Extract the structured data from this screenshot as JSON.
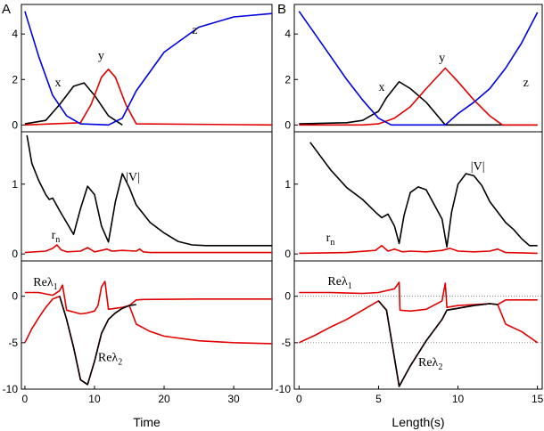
{
  "panels": {
    "A": "A",
    "B": "B"
  },
  "chart_data": [
    {
      "id": "A-top",
      "type": "line",
      "xlim": [
        -0.5,
        35.5
      ],
      "ylim": [
        -0.3,
        5.3
      ],
      "yticks": [
        0,
        2,
        4
      ],
      "xticks": [],
      "series": [
        {
          "name": "x",
          "color": "#000000",
          "x": [
            0,
            3,
            5,
            7,
            8.5,
            10,
            12,
            14
          ],
          "y": [
            0.05,
            0.2,
            0.9,
            1.7,
            1.85,
            1.3,
            0.4,
            0.0
          ]
        },
        {
          "name": "y",
          "color": "#e00000",
          "x": [
            0,
            8,
            9.5,
            11,
            12,
            13,
            14.5,
            16,
            36
          ],
          "y": [
            0,
            0.1,
            0.9,
            2.1,
            2.45,
            2.1,
            0.9,
            0.05,
            0
          ]
        },
        {
          "name": "z",
          "color": "#0000e0",
          "x": [
            0,
            2,
            4,
            6,
            8,
            12,
            14,
            16,
            20,
            25,
            30,
            35.5
          ],
          "y": [
            5.0,
            3.0,
            1.3,
            0.4,
            0.05,
            0,
            0.3,
            1.5,
            3.2,
            4.3,
            4.75,
            4.9
          ]
        }
      ],
      "labels": [
        {
          "text": "x",
          "x": 4.3,
          "y": 1.7
        },
        {
          "text": "y",
          "x": 10.5,
          "y": 2.9
        },
        {
          "text": "z",
          "x": 24,
          "y": 4.0
        }
      ]
    },
    {
      "id": "A-mid",
      "type": "line",
      "xlim": [
        -0.5,
        35.5
      ],
      "ylim": [
        -0.1,
        1.75
      ],
      "yticks": [
        0,
        1
      ],
      "xticks": [],
      "series": [
        {
          "name": "|V|",
          "color": "#000000",
          "x": [
            0.3,
            1,
            2,
            3,
            3.5,
            4,
            5,
            6,
            7,
            8,
            9,
            10,
            11,
            12,
            13,
            14,
            15,
            16,
            18,
            20,
            22,
            24,
            26,
            30,
            35.5
          ],
          "y": [
            1.7,
            1.3,
            1.05,
            0.85,
            0.78,
            0.8,
            0.62,
            0.45,
            0.28,
            0.65,
            0.97,
            0.85,
            0.4,
            0.17,
            0.75,
            1.15,
            0.95,
            0.7,
            0.45,
            0.3,
            0.18,
            0.13,
            0.12,
            0.12,
            0.12
          ]
        },
        {
          "name": "r_n",
          "color": "#e00000",
          "x": [
            0,
            3,
            4,
            4.6,
            5.2,
            6,
            8,
            9,
            10,
            11,
            11.8,
            12.5,
            14,
            16,
            16.5,
            17,
            18,
            35.5
          ],
          "y": [
            0.02,
            0.04,
            0.08,
            0.13,
            0.06,
            0.03,
            0.04,
            0.09,
            0.03,
            0.05,
            0.07,
            0.04,
            0.05,
            0.04,
            0.07,
            0.03,
            0.02,
            0.02
          ]
        }
      ],
      "labels": [
        {
          "text": "|V|",
          "x": 14.5,
          "y": 1.05
        },
        {
          "text": "r",
          "sub": "n",
          "x": 3.8,
          "y": 0.22
        }
      ]
    },
    {
      "id": "A-bot",
      "type": "line",
      "xlim": [
        -0.5,
        35.5
      ],
      "ylim": [
        -10,
        3.8
      ],
      "yticks": [
        0,
        -5,
        -10
      ],
      "xticks": [
        0,
        10,
        20,
        30
      ],
      "xlabel": "Time",
      "series": [
        {
          "name": "Reλ1",
          "color": "#e00000",
          "x": [
            0,
            2,
            4,
            5,
            5.4,
            6,
            7,
            8,
            9,
            10,
            10.5,
            11,
            11.5,
            12,
            13,
            14,
            15,
            16,
            17,
            25,
            35.5
          ],
          "y": [
            0.4,
            0.4,
            0.1,
            0.6,
            1.2,
            -1.5,
            -1.7,
            -1.9,
            -1.8,
            -1.6,
            -1.0,
            1.0,
            1.6,
            -1.4,
            -1.3,
            -1.2,
            -1.0,
            -0.4,
            -0.35,
            -0.3,
            -0.3
          ]
        },
        {
          "name": "Reλ2",
          "color": "#e00000",
          "x": [
            0,
            1,
            2,
            3,
            4,
            5,
            6,
            7,
            8,
            9,
            10,
            11,
            12,
            13,
            14,
            15,
            16,
            18,
            20,
            25,
            30,
            35.5
          ],
          "y": [
            -5.0,
            -3.5,
            -2.3,
            -1.2,
            -0.3,
            0.0,
            -2.5,
            -5.5,
            -9.0,
            -9.5,
            -7.0,
            -4.0,
            -2.5,
            -1.8,
            -1.3,
            -1.0,
            -3.0,
            -3.8,
            -4.3,
            -4.8,
            -5.0,
            -5.1
          ]
        }
      ],
      "overlay": {
        "color": "#000000",
        "x": [
          5,
          6,
          7,
          8,
          9,
          10,
          11,
          12,
          13,
          14,
          15,
          16
        ],
        "y": [
          0.0,
          -2.5,
          -5.5,
          -9.0,
          -9.5,
          -7.0,
          -4.0,
          -2.5,
          -1.8,
          -1.3,
          -1.0,
          -0.9
        ]
      },
      "labels": [
        {
          "text": "Reλ",
          "sub": "1",
          "x": 1.2,
          "y": 1.1
        },
        {
          "text": "Reλ",
          "sub": "2",
          "x": 10.5,
          "y": -7.0
        }
      ]
    },
    {
      "id": "B-top",
      "type": "line",
      "xlim": [
        -0.3,
        15.3
      ],
      "ylim": [
        -0.3,
        5.3
      ],
      "yticks": [
        0,
        2,
        4
      ],
      "xticks": [],
      "series": [
        {
          "name": "x",
          "color": "#000000",
          "x": [
            0,
            3,
            4,
            5,
            5.5,
            6.3,
            7,
            8,
            9.2,
            10,
            15
          ],
          "y": [
            0.05,
            0.1,
            0.2,
            0.6,
            1.2,
            1.9,
            1.6,
            1.0,
            0.0,
            0.0,
            0.0
          ]
        },
        {
          "name": "y",
          "color": "#e00000",
          "x": [
            0,
            4,
            5,
            6,
            7,
            8,
            9.2,
            10,
            11,
            12,
            12.8,
            15
          ],
          "y": [
            0,
            0,
            0.05,
            0.3,
            0.8,
            1.6,
            2.5,
            1.9,
            1.1,
            0.4,
            0,
            0
          ]
        },
        {
          "name": "z",
          "color": "#0000e0",
          "x": [
            0,
            1,
            2,
            3,
            4,
            5,
            5.8,
            7,
            8,
            9.2,
            10,
            11,
            12,
            13,
            14,
            15
          ],
          "y": [
            5.0,
            4.0,
            3.0,
            2.0,
            1.1,
            0.3,
            0,
            0,
            0,
            0,
            0.5,
            1.0,
            1.6,
            2.5,
            3.6,
            4.95
          ]
        }
      ],
      "labels": [
        {
          "text": "x",
          "x": 5.0,
          "y": 1.5
        },
        {
          "text": "y",
          "x": 8.8,
          "y": 2.8
        },
        {
          "text": "z",
          "x": 14.1,
          "y": 1.7
        }
      ]
    },
    {
      "id": "B-mid",
      "type": "line",
      "xlim": [
        -0.3,
        15.3
      ],
      "ylim": [
        -0.1,
        1.75
      ],
      "yticks": [
        0,
        1
      ],
      "xticks": [],
      "series": [
        {
          "name": "|V|",
          "color": "#000000",
          "x": [
            0.7,
            2,
            3,
            4,
            4.8,
            5.2,
            5.6,
            6,
            6.3,
            6.6,
            7,
            7.5,
            8,
            9,
            9.3,
            9.6,
            10,
            10.5,
            11,
            11.5,
            12,
            12.5,
            13,
            13.5,
            14,
            14.5,
            15
          ],
          "y": [
            1.6,
            1.2,
            0.95,
            0.78,
            0.6,
            0.52,
            0.57,
            0.4,
            0.15,
            0.55,
            0.88,
            0.96,
            0.92,
            0.5,
            0.1,
            0.6,
            1.0,
            1.15,
            1.12,
            0.98,
            0.75,
            0.6,
            0.45,
            0.35,
            0.22,
            0.12,
            0.12
          ]
        },
        {
          "name": "r_n",
          "color": "#e00000",
          "x": [
            0,
            3,
            4.8,
            5.2,
            5.6,
            6,
            6.5,
            7,
            8,
            9,
            9.5,
            10,
            11,
            12,
            12.5,
            13,
            15
          ],
          "y": [
            0.01,
            0.02,
            0.05,
            0.12,
            0.04,
            0.07,
            0.03,
            0.04,
            0.03,
            0.05,
            0.08,
            0.04,
            0.03,
            0.04,
            0.07,
            0.02,
            0.01
          ]
        }
      ],
      "labels": [
        {
          "text": "|V|",
          "x": 10.8,
          "y": 1.2
        },
        {
          "text": "r",
          "sub": "n",
          "x": 1.7,
          "y": 0.18
        }
      ]
    },
    {
      "id": "B-bot",
      "type": "line",
      "xlim": [
        -0.3,
        15.3
      ],
      "ylim": [
        -10,
        3.8
      ],
      "yticks": [
        0,
        -5,
        -10
      ],
      "xticks": [
        0,
        5,
        10,
        15
      ],
      "xlabel": "Length(s)",
      "refLines": [
        0,
        -5
      ],
      "series": [
        {
          "name": "Reλ1",
          "color": "#e00000",
          "x": [
            0,
            2,
            4,
            5,
            6,
            6.3,
            6.35,
            7,
            8,
            9,
            9.2,
            9.3,
            10,
            11,
            12,
            12.5,
            13,
            14,
            15
          ],
          "y": [
            0.4,
            0.4,
            0.3,
            0.4,
            0.8,
            1.5,
            -1.5,
            -1.6,
            -1.4,
            -0.5,
            1.4,
            -1.2,
            -1.0,
            -0.9,
            -0.8,
            -0.9,
            -3.0,
            -3.8,
            -5.0
          ]
        },
        {
          "name": "Reλ2",
          "color": "#e00000",
          "x": [
            0,
            1,
            2,
            3,
            4,
            5,
            5.5,
            6.3,
            7,
            8,
            9,
            9.3,
            10,
            11,
            12,
            12.5,
            13,
            14,
            15
          ],
          "y": [
            -5.0,
            -4.2,
            -3.3,
            -2.5,
            -1.5,
            -0.5,
            -1.5,
            -9.7,
            -7.5,
            -4.8,
            -2.5,
            -1.5,
            -1.3,
            -1.0,
            -0.8,
            -0.9,
            -0.4,
            -0.4,
            -0.4
          ]
        }
      ],
      "overlay": {
        "color": "#000000",
        "x": [
          5,
          5.5,
          6.3,
          7,
          8,
          9,
          9.3,
          10,
          11,
          12,
          12.5
        ],
        "y": [
          -0.5,
          -1.5,
          -9.7,
          -7.5,
          -4.8,
          -2.5,
          -1.5,
          -1.3,
          -1.0,
          -0.8,
          -0.9
        ]
      },
      "labels": [
        {
          "text": "Reλ",
          "sub": "1",
          "x": 1.8,
          "y": 1.2
        },
        {
          "text": "Reλ",
          "sub": "2",
          "x": 7.5,
          "y": -7.5
        }
      ]
    }
  ]
}
